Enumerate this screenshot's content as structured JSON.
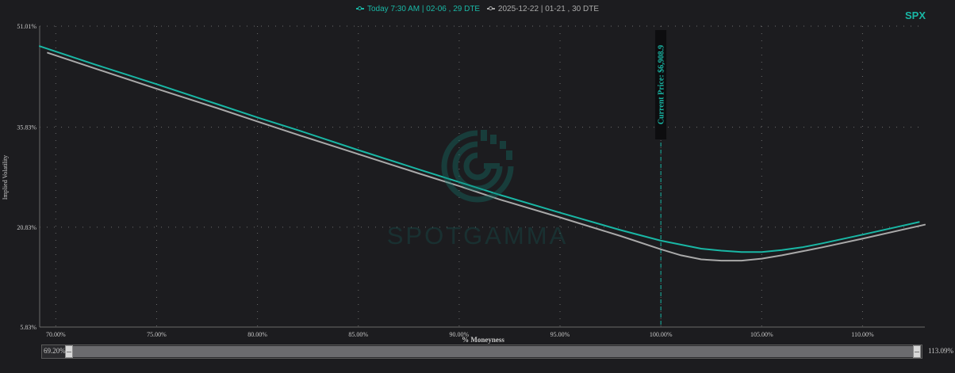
{
  "legend": {
    "series_1": "Today 7:30 AM | 02-06 , 29 DTE",
    "series_2": "2025-12-22 | 01-21 , 30 DTE"
  },
  "ticker": "SPX",
  "watermark": {
    "text": "SPOTGAMMA"
  },
  "colors": {
    "series_1": "#19b7a5",
    "series_2": "#a9a9a9",
    "accent": "#19b7a5",
    "background": "#1c1c1f"
  },
  "slider": {
    "min_label": "69.20%",
    "max_label": "113.09%"
  },
  "chart_data": {
    "type": "line",
    "xlabel": "% Moneyness",
    "ylabel": "Implied Volatility",
    "xlim": [
      69.2,
      113.09
    ],
    "ylim": [
      5.83,
      51.01
    ],
    "x_ticks": [
      "70.00%",
      "75.00%",
      "80.00%",
      "85.00%",
      "90.00%",
      "95.00%",
      "100.00%",
      "105.00%",
      "110.00%"
    ],
    "x_tick_values": [
      70,
      75,
      80,
      85,
      90,
      95,
      100,
      105,
      110
    ],
    "y_ticks": [
      "5.83%",
      "20.83%",
      "35.83%",
      "51.01%"
    ],
    "y_tick_values": [
      5.83,
      20.83,
      35.83,
      51.01
    ],
    "grid": true,
    "legend_position": "top-center",
    "annotation": {
      "label": "Current Price: $6,908.9",
      "x": 100.0
    },
    "series": [
      {
        "name": "Today 7:30 AM | 02-06 , 29 DTE",
        "x": [
          69.2,
          72,
          75,
          78,
          80,
          82,
          85,
          88,
          90,
          92,
          95,
          98,
          100,
          102,
          103,
          104,
          105,
          106,
          107,
          108,
          110,
          112.8
        ],
        "y": [
          48.0,
          45.2,
          42.3,
          39.3,
          37.3,
          35.4,
          32.4,
          29.5,
          27.6,
          25.7,
          23.0,
          20.4,
          18.8,
          17.6,
          17.3,
          17.1,
          17.1,
          17.4,
          17.8,
          18.4,
          19.7,
          21.6
        ]
      },
      {
        "name": "2025-12-22 | 01-21 , 30 DTE",
        "x": [
          69.6,
          72,
          75,
          78,
          80,
          82,
          85,
          88,
          90,
          92,
          95,
          98,
          100,
          101,
          102,
          103,
          104,
          105,
          106,
          107,
          108,
          110,
          113.09
        ],
        "y": [
          47.0,
          44.6,
          41.6,
          38.7,
          36.7,
          34.7,
          31.8,
          28.9,
          27.0,
          25.0,
          22.3,
          19.5,
          17.5,
          16.6,
          16.0,
          15.8,
          15.8,
          16.1,
          16.6,
          17.2,
          17.8,
          19.1,
          21.2
        ]
      }
    ]
  }
}
